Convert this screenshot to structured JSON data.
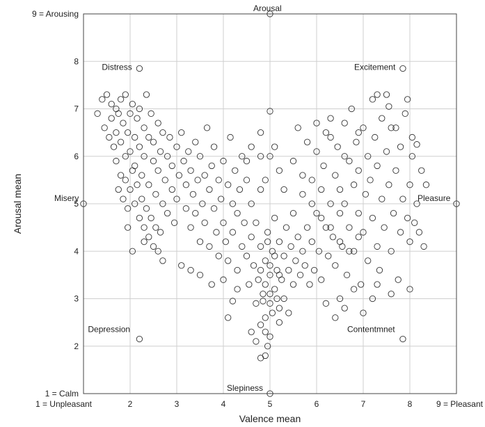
{
  "chart_data": {
    "type": "scatter",
    "title": "",
    "xlabel": "Valence mean",
    "ylabel": "Arousal mean",
    "xlim": [
      1,
      9
    ],
    "ylim": [
      1,
      9
    ],
    "grid": true,
    "x_ticks": [
      {
        "value": 1,
        "label": "1 = Unpleasant"
      },
      {
        "value": 2,
        "label": "2"
      },
      {
        "value": 3,
        "label": "3"
      },
      {
        "value": 4,
        "label": "4"
      },
      {
        "value": 5,
        "label": "5"
      },
      {
        "value": 6,
        "label": "6"
      },
      {
        "value": 7,
        "label": "7"
      },
      {
        "value": 8,
        "label": "8"
      },
      {
        "value": 9,
        "label": "9 = Pleasant"
      }
    ],
    "y_ticks": [
      {
        "value": 1,
        "label": "1 = Calm"
      },
      {
        "value": 2,
        "label": "2"
      },
      {
        "value": 3,
        "label": "3"
      },
      {
        "value": 4,
        "label": "4"
      },
      {
        "value": 5,
        "label": "5"
      },
      {
        "value": 6,
        "label": "6"
      },
      {
        "value": 7,
        "label": "7"
      },
      {
        "value": 8,
        "label": "8"
      },
      {
        "value": 9,
        "label": "9 = Arousing"
      }
    ],
    "marker": "open-circle",
    "marker_color": "#333333",
    "anchors": [
      {
        "label": "Arousal",
        "x": 5.0,
        "y": 9.0
      },
      {
        "label": "Distress",
        "x": 2.2,
        "y": 7.85
      },
      {
        "label": "Excitement",
        "x": 7.85,
        "y": 7.85
      },
      {
        "label": "Misery",
        "x": 1.0,
        "y": 5.0
      },
      {
        "label": "Pleasure",
        "x": 9.0,
        "y": 5.0
      },
      {
        "label": "Depression",
        "x": 2.2,
        "y": 2.15
      },
      {
        "label": "Contentmnet",
        "x": 7.85,
        "y": 2.15
      },
      {
        "label": "Slepiness",
        "x": 5.0,
        "y": 1.0
      }
    ],
    "points": [
      [
        1.3,
        6.9
      ],
      [
        1.4,
        7.2
      ],
      [
        1.45,
        6.6
      ],
      [
        1.5,
        7.3
      ],
      [
        1.55,
        6.4
      ],
      [
        1.6,
        6.8
      ],
      [
        1.6,
        7.1
      ],
      [
        1.65,
        6.2
      ],
      [
        1.7,
        7.0
      ],
      [
        1.7,
        6.5
      ],
      [
        1.75,
        6.9
      ],
      [
        1.8,
        6.3
      ],
      [
        1.8,
        7.2
      ],
      [
        1.85,
        6.7
      ],
      [
        1.9,
        6.0
      ],
      [
        1.9,
        7.3
      ],
      [
        1.95,
        6.5
      ],
      [
        2.0,
        6.9
      ],
      [
        2.0,
        6.1
      ],
      [
        2.05,
        7.1
      ],
      [
        2.1,
        6.4
      ],
      [
        2.1,
        5.8
      ],
      [
        2.15,
        6.8
      ],
      [
        2.2,
        6.2
      ],
      [
        2.2,
        7.0
      ],
      [
        2.25,
        5.6
      ],
      [
        2.3,
        6.6
      ],
      [
        2.3,
        6.0
      ],
      [
        2.35,
        7.3
      ],
      [
        2.4,
        6.4
      ],
      [
        2.4,
        5.4
      ],
      [
        2.45,
        6.9
      ],
      [
        2.5,
        5.9
      ],
      [
        2.5,
        6.3
      ],
      [
        2.55,
        5.2
      ],
      [
        2.6,
        6.7
      ],
      [
        2.6,
        5.7
      ],
      [
        2.65,
        6.1
      ],
      [
        2.7,
        5.0
      ],
      [
        2.7,
        6.5
      ],
      [
        2.75,
        5.5
      ],
      [
        2.8,
        6.0
      ],
      [
        2.8,
        4.8
      ],
      [
        2.85,
        6.4
      ],
      [
        2.9,
        5.3
      ],
      [
        2.9,
        5.8
      ],
      [
        2.95,
        4.6
      ],
      [
        3.0,
        6.2
      ],
      [
        3.0,
        5.1
      ],
      [
        3.05,
        5.6
      ],
      [
        1.7,
        5.9
      ],
      [
        1.75,
        5.3
      ],
      [
        1.8,
        5.6
      ],
      [
        1.85,
        5.1
      ],
      [
        1.9,
        5.5
      ],
      [
        1.95,
        4.9
      ],
      [
        2.0,
        5.3
      ],
      [
        2.05,
        5.7
      ],
      [
        2.1,
        5.0
      ],
      [
        2.15,
        5.4
      ],
      [
        2.2,
        4.7
      ],
      [
        2.25,
        5.1
      ],
      [
        2.3,
        4.5
      ],
      [
        2.35,
        4.9
      ],
      [
        2.4,
        4.3
      ],
      [
        2.45,
        4.7
      ],
      [
        2.5,
        4.1
      ],
      [
        2.55,
        4.5
      ],
      [
        2.6,
        4.0
      ],
      [
        2.65,
        4.4
      ],
      [
        1.95,
        4.5
      ],
      [
        2.05,
        4.0
      ],
      [
        2.3,
        4.2
      ],
      [
        2.7,
        3.8
      ],
      [
        3.1,
        3.7
      ],
      [
        3.1,
        6.5
      ],
      [
        3.15,
        5.9
      ],
      [
        3.2,
        5.4
      ],
      [
        3.2,
        4.9
      ],
      [
        3.25,
        6.1
      ],
      [
        3.3,
        5.7
      ],
      [
        3.3,
        4.5
      ],
      [
        3.35,
        5.2
      ],
      [
        3.4,
        6.3
      ],
      [
        3.4,
        4.8
      ],
      [
        3.45,
        5.5
      ],
      [
        3.5,
        4.2
      ],
      [
        3.5,
        6.0
      ],
      [
        3.55,
        5.0
      ],
      [
        3.6,
        5.6
      ],
      [
        3.6,
        4.6
      ],
      [
        3.65,
        6.6
      ],
      [
        3.7,
        5.3
      ],
      [
        3.7,
        4.1
      ],
      [
        3.75,
        5.8
      ],
      [
        3.8,
        4.9
      ],
      [
        3.8,
        6.2
      ],
      [
        3.85,
        4.4
      ],
      [
        3.9,
        5.5
      ],
      [
        3.9,
        3.9
      ],
      [
        3.95,
        5.1
      ],
      [
        4.0,
        5.9
      ],
      [
        4.0,
        4.6
      ],
      [
        4.05,
        4.2
      ],
      [
        4.1,
        5.4
      ],
      [
        4.1,
        3.8
      ],
      [
        4.15,
        6.4
      ],
      [
        4.2,
        5.0
      ],
      [
        4.2,
        4.4
      ],
      [
        4.25,
        5.7
      ],
      [
        4.3,
        3.6
      ],
      [
        4.3,
        4.8
      ],
      [
        4.35,
        5.3
      ],
      [
        4.4,
        4.1
      ],
      [
        4.4,
        6.0
      ],
      [
        3.3,
        3.6
      ],
      [
        3.5,
        3.5
      ],
      [
        3.75,
        3.3
      ],
      [
        4.0,
        3.4
      ],
      [
        4.1,
        2.6
      ],
      [
        4.2,
        2.95
      ],
      [
        4.3,
        3.2
      ],
      [
        4.45,
        4.6
      ],
      [
        4.5,
        3.9
      ],
      [
        4.5,
        5.5
      ],
      [
        4.55,
        3.3
      ],
      [
        4.6,
        4.3
      ],
      [
        4.6,
        5.0
      ],
      [
        4.65,
        3.7
      ],
      [
        4.7,
        2.9
      ],
      [
        4.7,
        4.6
      ],
      [
        4.75,
        3.4
      ],
      [
        4.8,
        4.1
      ],
      [
        4.8,
        5.3
      ],
      [
        4.85,
        3.1
      ],
      [
        4.9,
        3.8
      ],
      [
        4.9,
        2.6
      ],
      [
        4.95,
        4.4
      ],
      [
        5.0,
        3.5
      ],
      [
        5.0,
        2.9
      ],
      [
        5.05,
        4.0
      ],
      [
        5.1,
        3.2
      ],
      [
        5.1,
        4.7
      ],
      [
        5.15,
        3.6
      ],
      [
        5.2,
        2.8
      ],
      [
        5.2,
        4.2
      ],
      [
        5.25,
        3.4
      ],
      [
        5.3,
        3.9
      ],
      [
        5.3,
        3.0
      ],
      [
        5.35,
        4.5
      ],
      [
        5.4,
        3.6
      ],
      [
        5.45,
        4.1
      ],
      [
        5.5,
        3.3
      ],
      [
        5.5,
        4.8
      ],
      [
        5.55,
        3.8
      ],
      [
        5.6,
        4.3
      ],
      [
        5.65,
        3.5
      ],
      [
        5.7,
        4.0
      ],
      [
        5.7,
        5.2
      ],
      [
        5.75,
        3.7
      ],
      [
        5.8,
        4.5
      ],
      [
        5.85,
        3.3
      ],
      [
        4.6,
        2.3
      ],
      [
        4.7,
        2.1
      ],
      [
        4.8,
        2.45
      ],
      [
        4.9,
        2.3
      ],
      [
        4.95,
        2.0
      ],
      [
        5.0,
        2.2
      ],
      [
        4.8,
        1.75
      ],
      [
        4.9,
        1.8
      ],
      [
        5.2,
        2.5
      ],
      [
        5.4,
        2.7
      ],
      [
        4.9,
        3.3
      ],
      [
        5.0,
        3.1
      ],
      [
        5.0,
        3.7
      ],
      [
        5.1,
        3.9
      ],
      [
        5.2,
        3.5
      ],
      [
        4.8,
        3.6
      ],
      [
        4.85,
        2.95
      ],
      [
        5.05,
        2.7
      ],
      [
        5.15,
        3.0
      ],
      [
        4.95,
        4.2
      ],
      [
        4.5,
        5.9
      ],
      [
        4.6,
        6.2
      ],
      [
        4.8,
        6.0
      ],
      [
        5.0,
        6.0
      ],
      [
        5.1,
        6.2
      ],
      [
        4.8,
        6.5
      ],
      [
        5.0,
        6.95
      ],
      [
        4.9,
        5.5
      ],
      [
        5.2,
        5.7
      ],
      [
        5.3,
        5.3
      ],
      [
        5.9,
        4.2
      ],
      [
        5.9,
        5.5
      ],
      [
        5.95,
        3.6
      ],
      [
        6.0,
        4.8
      ],
      [
        6.0,
        6.1
      ],
      [
        6.05,
        4.0
      ],
      [
        6.1,
        5.3
      ],
      [
        6.1,
        3.4
      ],
      [
        6.15,
        5.8
      ],
      [
        6.2,
        4.5
      ],
      [
        6.2,
        6.5
      ],
      [
        6.25,
        3.9
      ],
      [
        6.3,
        5.0
      ],
      [
        6.3,
        6.8
      ],
      [
        6.35,
        4.3
      ],
      [
        6.4,
        5.6
      ],
      [
        6.4,
        3.7
      ],
      [
        6.45,
        6.2
      ],
      [
        6.5,
        4.8
      ],
      [
        6.5,
        5.3
      ],
      [
        6.55,
        4.1
      ],
      [
        6.6,
        6.7
      ],
      [
        6.6,
        5.0
      ],
      [
        6.65,
        3.5
      ],
      [
        6.7,
        5.9
      ],
      [
        6.7,
        4.5
      ],
      [
        6.75,
        7.0
      ],
      [
        6.8,
        5.4
      ],
      [
        6.8,
        4.0
      ],
      [
        6.85,
        6.3
      ],
      [
        6.9,
        4.8
      ],
      [
        6.9,
        5.7
      ],
      [
        6.95,
        3.3
      ],
      [
        7.0,
        6.6
      ],
      [
        7.0,
        4.4
      ],
      [
        7.05,
        5.2
      ],
      [
        7.1,
        6.0
      ],
      [
        7.1,
        3.8
      ],
      [
        7.15,
        5.5
      ],
      [
        7.2,
        7.2
      ],
      [
        7.2,
        4.7
      ],
      [
        7.25,
        6.4
      ],
      [
        7.3,
        4.1
      ],
      [
        7.3,
        5.8
      ],
      [
        7.35,
        3.6
      ],
      [
        7.4,
        6.8
      ],
      [
        7.4,
        5.1
      ],
      [
        7.45,
        4.5
      ],
      [
        7.5,
        6.1
      ],
      [
        7.5,
        7.3
      ],
      [
        7.55,
        5.4
      ],
      [
        7.6,
        4.0
      ],
      [
        7.6,
        6.6
      ],
      [
        7.65,
        4.8
      ],
      [
        7.7,
        5.7
      ],
      [
        7.75,
        3.4
      ],
      [
        7.8,
        6.2
      ],
      [
        7.8,
        4.4
      ],
      [
        7.85,
        5.1
      ],
      [
        7.9,
        6.9
      ],
      [
        7.95,
        4.7
      ],
      [
        8.0,
        5.4
      ],
      [
        8.0,
        4.2
      ],
      [
        8.05,
        6.0
      ],
      [
        8.1,
        4.6
      ],
      [
        8.15,
        5.0
      ],
      [
        8.2,
        4.4
      ],
      [
        8.25,
        5.7
      ],
      [
        8.3,
        4.1
      ],
      [
        8.35,
        5.4
      ],
      [
        6.2,
        2.9
      ],
      [
        6.4,
        2.6
      ],
      [
        6.5,
        3.0
      ],
      [
        6.6,
        2.8
      ],
      [
        6.8,
        3.2
      ],
      [
        7.0,
        2.7
      ],
      [
        7.2,
        3.0
      ],
      [
        7.3,
        3.3
      ],
      [
        7.6,
        3.1
      ],
      [
        8.0,
        3.2
      ],
      [
        7.3,
        7.3
      ],
      [
        7.55,
        7.05
      ],
      [
        7.7,
        6.6
      ],
      [
        7.95,
        7.2
      ],
      [
        8.05,
        6.4
      ],
      [
        8.15,
        6.25
      ],
      [
        6.0,
        6.7
      ],
      [
        6.3,
        6.4
      ],
      [
        6.6,
        6.0
      ],
      [
        6.9,
        6.5
      ],
      [
        5.6,
        6.6
      ],
      [
        5.8,
        6.3
      ],
      [
        5.5,
        5.9
      ],
      [
        5.7,
        5.6
      ],
      [
        5.9,
        5.0
      ],
      [
        6.1,
        4.7
      ],
      [
        6.3,
        4.5
      ],
      [
        6.5,
        4.2
      ],
      [
        6.7,
        4.0
      ],
      [
        6.9,
        4.3
      ]
    ]
  }
}
